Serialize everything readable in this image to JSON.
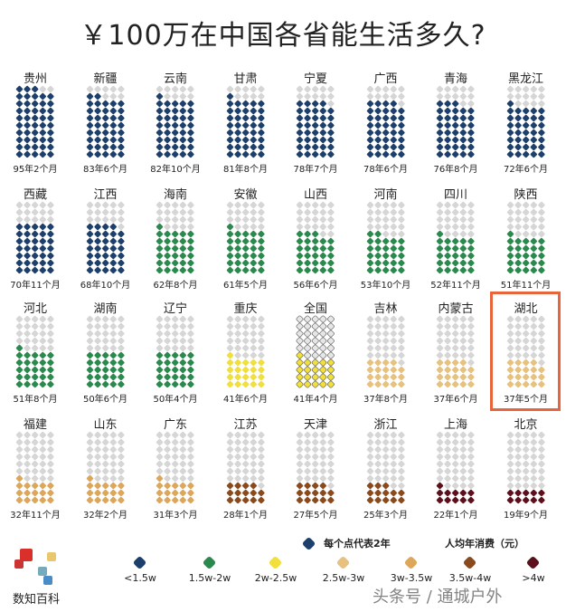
{
  "chart_data": {
    "type": "waffle",
    "title": "￥100万在中国各省能生活多久?",
    "dot_unit": "每个点代表2年",
    "grid": {
      "columns": 5,
      "rows": 10
    },
    "provinces": [
      {
        "name": "贵州",
        "years": 95,
        "months": 2,
        "label": "95年2个月",
        "band": 0
      },
      {
        "name": "新疆",
        "years": 83,
        "months": 6,
        "label": "83年6个月",
        "band": 0
      },
      {
        "name": "云南",
        "years": 82,
        "months": 10,
        "label": "82年10个月",
        "band": 0
      },
      {
        "name": "甘肃",
        "years": 81,
        "months": 8,
        "label": "81年8个月",
        "band": 0
      },
      {
        "name": "宁夏",
        "years": 78,
        "months": 7,
        "label": "78年7个月",
        "band": 0
      },
      {
        "name": "广西",
        "years": 78,
        "months": 6,
        "label": "78年6个月",
        "band": 0
      },
      {
        "name": "青海",
        "years": 76,
        "months": 8,
        "label": "76年8个月",
        "band": 0
      },
      {
        "name": "黑龙江",
        "years": 72,
        "months": 6,
        "label": "72年6个月",
        "band": 0
      },
      {
        "name": "西藏",
        "years": 70,
        "months": 11,
        "label": "70年11个月",
        "band": 0
      },
      {
        "name": "江西",
        "years": 68,
        "months": 10,
        "label": "68年10个月",
        "band": 0
      },
      {
        "name": "海南",
        "years": 62,
        "months": 8,
        "label": "62年8个月",
        "band": 1
      },
      {
        "name": "安徽",
        "years": 61,
        "months": 5,
        "label": "61年5个月",
        "band": 1
      },
      {
        "name": "山西",
        "years": 56,
        "months": 6,
        "label": "56年6个月",
        "band": 1
      },
      {
        "name": "河南",
        "years": 53,
        "months": 10,
        "label": "53年10个月",
        "band": 1
      },
      {
        "name": "四川",
        "years": 52,
        "months": 11,
        "label": "52年11个月",
        "band": 1
      },
      {
        "name": "陕西",
        "years": 51,
        "months": 11,
        "label": "51年11个月",
        "band": 1
      },
      {
        "name": "河北",
        "years": 51,
        "months": 8,
        "label": "51年8个月",
        "band": 1
      },
      {
        "name": "湖南",
        "years": 50,
        "months": 6,
        "label": "50年6个月",
        "band": 1
      },
      {
        "name": "辽宁",
        "years": 50,
        "months": 4,
        "label": "50年4个月",
        "band": 1
      },
      {
        "name": "重庆",
        "years": 41,
        "months": 6,
        "label": "41年6个月",
        "band": 2
      },
      {
        "name": "全国",
        "years": 41,
        "months": 4,
        "label": "41年4个月",
        "band": 2,
        "national": true
      },
      {
        "name": "吉林",
        "years": 37,
        "months": 8,
        "label": "37年8个月",
        "band": 3
      },
      {
        "name": "内蒙古",
        "years": 37,
        "months": 6,
        "label": "37年6个月",
        "band": 3
      },
      {
        "name": "湖北",
        "years": 37,
        "months": 5,
        "label": "37年5个月",
        "band": 3,
        "highlight": true
      },
      {
        "name": "福建",
        "years": 32,
        "months": 11,
        "label": "32年11个月",
        "band": 4
      },
      {
        "name": "山东",
        "years": 32,
        "months": 2,
        "label": "32年2个月",
        "band": 4
      },
      {
        "name": "广东",
        "years": 31,
        "months": 3,
        "label": "31年3个月",
        "band": 4
      },
      {
        "name": "江苏",
        "years": 28,
        "months": 1,
        "label": "28年1个月",
        "band": 5
      },
      {
        "name": "天津",
        "years": 27,
        "months": 5,
        "label": "27年5个月",
        "band": 5
      },
      {
        "name": "浙江",
        "years": 25,
        "months": 3,
        "label": "25年3个月",
        "band": 5
      },
      {
        "name": "上海",
        "years": 22,
        "months": 1,
        "label": "22年1个月",
        "band": 6
      },
      {
        "name": "北京",
        "years": 19,
        "months": 9,
        "label": "19年9个月",
        "band": 6
      }
    ],
    "legend_title": "人均年消费（元）",
    "bands": [
      {
        "label": "<1.5w",
        "color": "#1d3f6b"
      },
      {
        "label": "1.5w-2w",
        "color": "#2a8a4e"
      },
      {
        "label": "2w-2.5w",
        "color": "#f0df3c"
      },
      {
        "label": "2.5w-3w",
        "color": "#e6c27e"
      },
      {
        "label": "3w-3.5w",
        "color": "#dca75a"
      },
      {
        "label": "3.5w-4w",
        "color": "#8a4a1c"
      },
      {
        "label": ">4w",
        "color": "#5e0f1c"
      }
    ],
    "empty_color": "#d6d6d6"
  },
  "brand": "数知百科",
  "watermark": "头条号 / 通城户外"
}
